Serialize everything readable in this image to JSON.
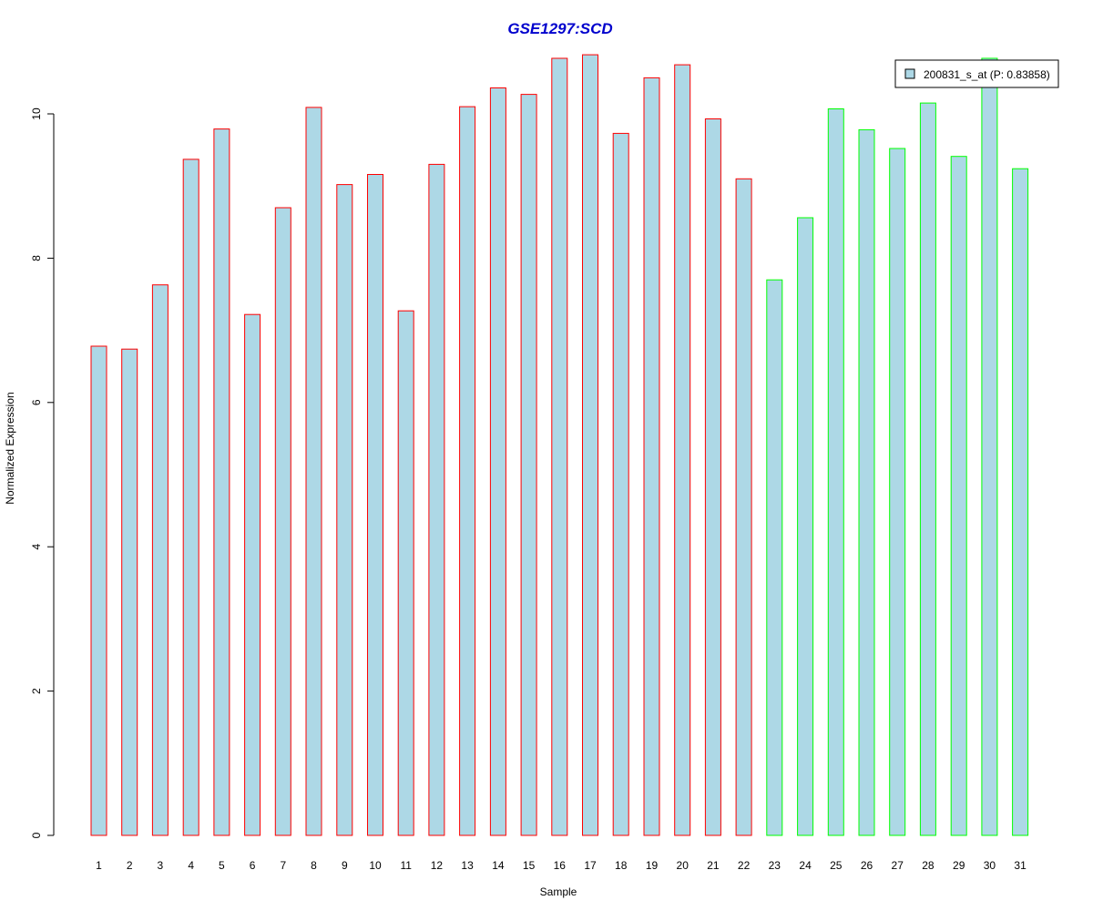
{
  "chart_data": {
    "type": "bar",
    "title": "GSE1297:SCD",
    "xlabel": "Sample",
    "ylabel": "Normalized Expression",
    "ylim": [
      0,
      10.8
    ],
    "yticks": [
      "0",
      "2",
      "4",
      "6",
      "8",
      "10"
    ],
    "grid": false,
    "legend_position": "top-right",
    "categories": [
      "1",
      "2",
      "3",
      "4",
      "5",
      "6",
      "7",
      "8",
      "9",
      "10",
      "11",
      "12",
      "13",
      "14",
      "15",
      "16",
      "17",
      "18",
      "19",
      "20",
      "21",
      "22",
      "23",
      "24",
      "25",
      "26",
      "27",
      "28",
      "29",
      "30",
      "31"
    ],
    "series": [
      {
        "name": "200831_s_at (P: 0.83858)",
        "values": [
          6.78,
          6.74,
          7.63,
          9.37,
          9.79,
          7.22,
          8.7,
          10.09,
          9.02,
          9.16,
          7.27,
          9.3,
          10.1,
          10.36,
          10.27,
          10.77,
          10.82,
          9.73,
          10.5,
          10.68,
          9.93,
          9.1,
          7.7,
          8.56,
          10.07,
          9.78,
          9.52,
          10.15,
          9.41,
          10.77,
          9.24
        ],
        "groups": [
          "a",
          "a",
          "a",
          "a",
          "a",
          "a",
          "a",
          "a",
          "a",
          "a",
          "a",
          "a",
          "a",
          "a",
          "a",
          "a",
          "a",
          "a",
          "a",
          "a",
          "a",
          "a",
          "b",
          "b",
          "b",
          "b",
          "b",
          "b",
          "b",
          "b",
          "b"
        ]
      }
    ],
    "colors": {
      "fill": "#add8e6",
      "group_a_border": "#ff0000",
      "group_b_border": "#00ff00",
      "title": "#0000cd"
    }
  }
}
